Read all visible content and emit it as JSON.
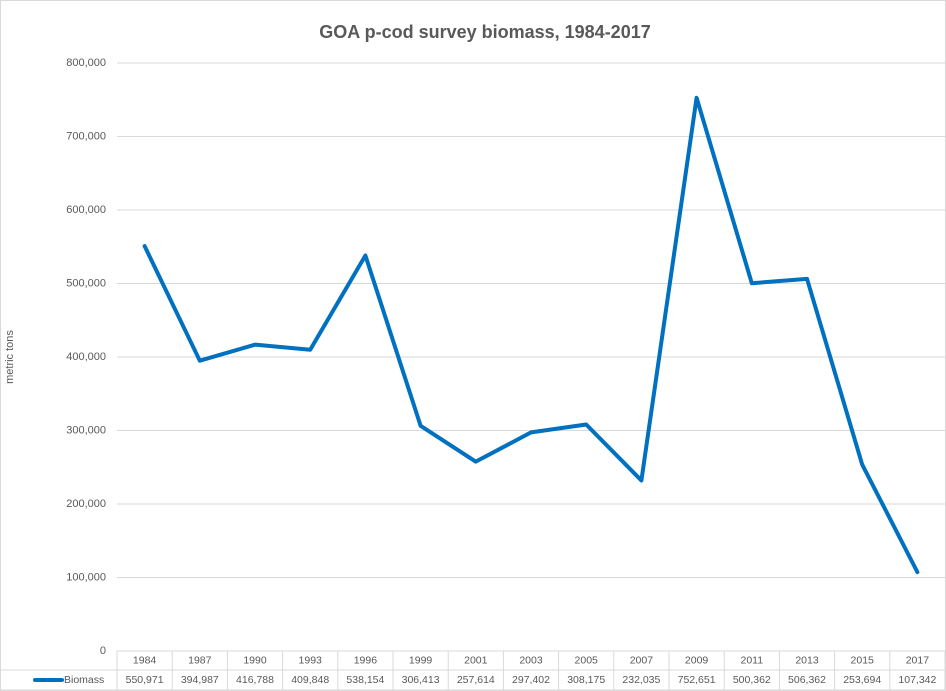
{
  "chart_data": {
    "type": "line",
    "title": "GOA p-cod survey biomass, 1984-2017",
    "y_label": "metric tons",
    "categories": [
      "1984",
      "1987",
      "1990",
      "1993",
      "1996",
      "1999",
      "2001",
      "2003",
      "2005",
      "2007",
      "2009",
      "2011",
      "2013",
      "2015",
      "2017"
    ],
    "series": [
      {
        "name": "Biomass",
        "color": "#0070c0",
        "values": [
          550971,
          394987,
          416788,
          409848,
          538154,
          306413,
          257614,
          297402,
          308175,
          232035,
          752651,
          500362,
          506362,
          253694,
          107342
        ],
        "value_labels": [
          "550,971",
          "394,987",
          "416,788",
          "409,848",
          "538,154",
          "306,413",
          "257,614",
          "297,402",
          "308,175",
          "232,035",
          "752,651",
          "500,362",
          "506,362",
          "253,694",
          "107,342"
        ]
      }
    ],
    "ylim": [
      0,
      800000
    ],
    "yticks": [
      0,
      {
        "value": 100000,
        "label": "100,000"
      },
      {
        "value": 200000,
        "label": "200,000"
      },
      {
        "value": 300000,
        "label": "300,000"
      },
      {
        "value": 400000,
        "label": "400,000"
      },
      {
        "value": 500000,
        "label": "500,000"
      },
      {
        "value": 600000,
        "label": "600,000"
      },
      {
        "value": 700000,
        "label": "700,000"
      },
      {
        "value": 800000,
        "label": "800,000"
      }
    ],
    "grid": true,
    "data_table": true
  }
}
